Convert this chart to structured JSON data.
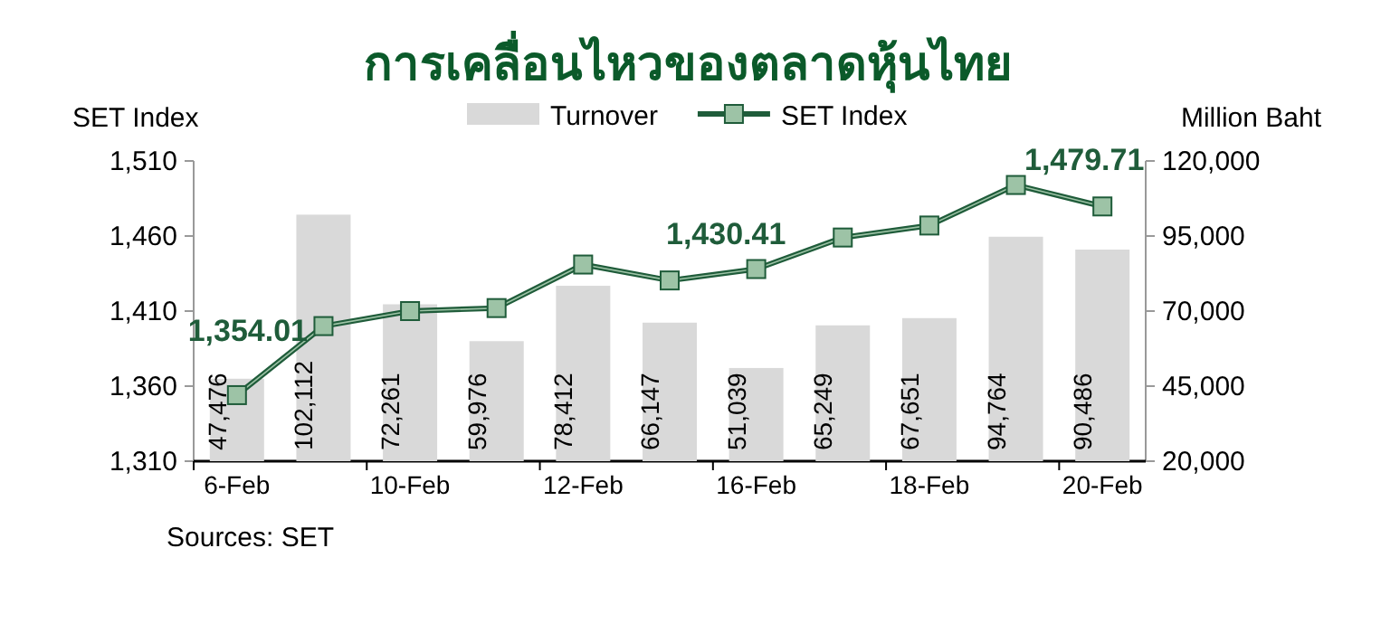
{
  "chart_data": {
    "type": "bar",
    "title": "การเคลื่อนไหวของตลาดหุ้นไทย",
    "ylabel": "SET Index",
    "y2label": "Million Baht",
    "categories": [
      "6-Feb",
      null,
      "10-Feb",
      null,
      "12-Feb",
      null,
      "16-Feb",
      null,
      "18-Feb",
      null,
      "20-Feb"
    ],
    "series": [
      {
        "name": "Turnover",
        "axis": "y2",
        "color": "#d9d9d9",
        "values": [
          47476,
          102112,
          72261,
          59976,
          78412,
          66147,
          51039,
          65249,
          67651,
          94764,
          90486
        ],
        "value_labels": [
          "47,476",
          "102,112",
          "72,261",
          "59,976",
          "78,412",
          "66,147",
          "51,039",
          "65,249",
          "67,651",
          "94,764",
          "90,486"
        ]
      },
      {
        "name": "SET Index",
        "type": "line",
        "axis": "y",
        "color": "#1f5c3a",
        "marker": "square",
        "values": [
          1354.01,
          1400,
          1410,
          1412,
          1441,
          1430.41,
          1438,
          1459,
          1467,
          1494,
          1479.71
        ],
        "value_labels": [
          "1,354.01",
          null,
          null,
          null,
          null,
          "1,430.41",
          null,
          null,
          null,
          null,
          "1,479.71"
        ]
      }
    ],
    "ylim": [
      1310,
      1510
    ],
    "yticks": [
      {
        "value": 1310,
        "label": "1,310"
      },
      {
        "value": 1360,
        "label": "1,360"
      },
      {
        "value": 1410,
        "label": "1,410"
      },
      {
        "value": 1460,
        "label": "1,460"
      },
      {
        "value": 1510,
        "label": "1,510"
      }
    ],
    "y2lim": [
      20000,
      120000
    ],
    "y2ticks": [
      {
        "value": 20000,
        "label": "20,000"
      },
      {
        "value": 45000,
        "label": "45,000"
      },
      {
        "value": 70000,
        "label": "70,000"
      },
      {
        "value": 95000,
        "label": "95,000"
      },
      {
        "value": 120000,
        "label": "120,000"
      }
    ],
    "legend": "top",
    "grid": false,
    "annotations": [
      "Sources: SET"
    ]
  }
}
